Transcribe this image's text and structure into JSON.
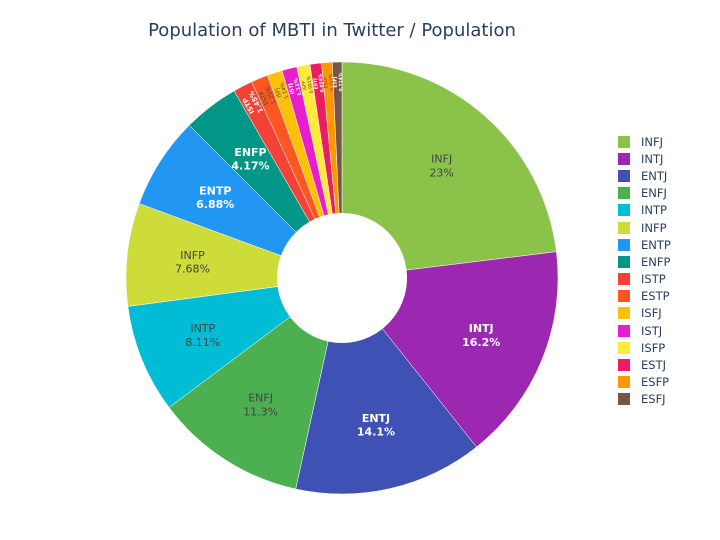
{
  "chart_data": {
    "type": "pie",
    "hole": 0.3,
    "title": "Population of MBTI in Twitter / Population",
    "legend_position": "right",
    "slices": [
      {
        "label": "INFJ",
        "value": 23,
        "text": "23%",
        "color": "#8bc34a",
        "text_color": "#444444"
      },
      {
        "label": "INTJ",
        "value": 16.2,
        "text": "16.2%",
        "color": "#9c27b0",
        "text_color": "#ffffff"
      },
      {
        "label": "ENTJ",
        "value": 14.1,
        "text": "14.1%",
        "color": "#3f51b5",
        "text_color": "#ffffff"
      },
      {
        "label": "ENFJ",
        "value": 11.3,
        "text": "11.3%",
        "color": "#4caf50",
        "text_color": "#444444"
      },
      {
        "label": "INTP",
        "value": 8.11,
        "text": "8.11%",
        "color": "#00bcd4",
        "text_color": "#444444"
      },
      {
        "label": "INFP",
        "value": 7.68,
        "text": "7.68%",
        "color": "#cddc39",
        "text_color": "#444444"
      },
      {
        "label": "ENTP",
        "value": 6.88,
        "text": "6.88%",
        "color": "#2196f3",
        "text_color": "#ffffff"
      },
      {
        "label": "ENFP",
        "value": 4.17,
        "text": "4.17%",
        "color": "#009688",
        "text_color": "#ffffff"
      },
      {
        "label": "ISTP",
        "value": 1.45,
        "text": "1.45%",
        "color": "#f44336",
        "text_color": "#ffffff"
      },
      {
        "label": "ESTP",
        "value": 1.25,
        "text": "1.25%",
        "color": "#ff5722",
        "text_color": "#444444"
      },
      {
        "label": "ISFJ",
        "value": 1.14,
        "text": "1.14%",
        "color": "#ffc107",
        "text_color": "#444444"
      },
      {
        "label": "ISTJ",
        "value": 1.11,
        "text": "1.11%",
        "color": "#e91ecb",
        "text_color": "#ffffff"
      },
      {
        "label": "ISFP",
        "value": 0.991,
        "text": "0.991%",
        "color": "#ffeb3b",
        "text_color": "#444444"
      },
      {
        "label": "ESTJ",
        "value": 0.854,
        "text": "0.854%",
        "color": "#e91e63",
        "text_color": "#ffffff"
      },
      {
        "label": "ESFP",
        "value": 0.792,
        "text": "0.792%",
        "color": "#ff9800",
        "text_color": "#444444"
      },
      {
        "label": "ESFJ",
        "value": 0.714,
        "text": "0.714%",
        "color": "#795548",
        "text_color": "#ffffff"
      }
    ]
  }
}
